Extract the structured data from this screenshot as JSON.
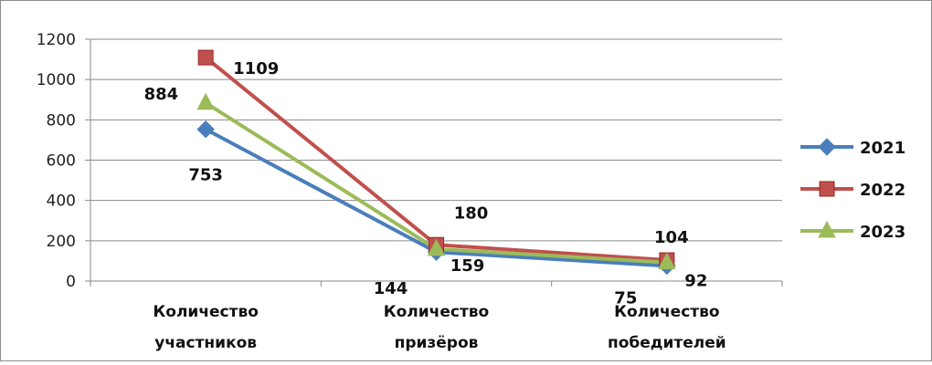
{
  "chart_data": {
    "type": "line",
    "title": "",
    "xlabel": "",
    "ylabel": "",
    "ylim": [
      0,
      1200
    ],
    "yticks": [
      0,
      200,
      400,
      600,
      800,
      1000,
      1200
    ],
    "grid": true,
    "legend_position": "right",
    "categories": [
      [
        "Количество",
        "участников"
      ],
      [
        "Количество",
        "призёров"
      ],
      [
        "Количество",
        "победителей"
      ]
    ],
    "series": [
      {
        "name": "2021",
        "values": [
          753,
          144,
          75
        ],
        "color": "#4a7ebb",
        "marker": "diamond"
      },
      {
        "name": "2022",
        "values": [
          1109,
          180,
          104
        ],
        "color": "#c0504d",
        "marker": "square"
      },
      {
        "name": "2023",
        "values": [
          884,
          159,
          92
        ],
        "color": "#9bbb59",
        "marker": "triangle"
      }
    ]
  }
}
